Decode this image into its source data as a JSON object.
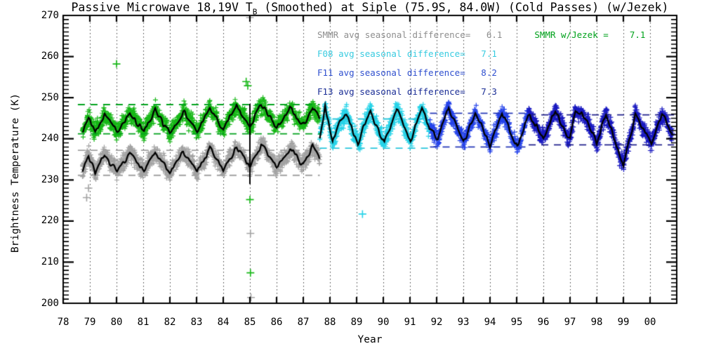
{
  "title_parts": {
    "prefix": "Passive Microwave 18,19V T",
    "subscript": "B",
    "suffix": " (Smoothed) at Siple (75.9S, 84.0W) (Cold Passes) (w/Jezek)"
  },
  "legend": {
    "rows": [
      {
        "label": "SMMR avg seasonal difference=   6.1",
        "color": "#8e8e8e"
      },
      {
        "label": "SMMR w/Jezek =    7.1",
        "color": "#00a21c"
      },
      {
        "label": "F08 avg seasonal difference=   7.1",
        "color": "#38cbe0"
      },
      {
        "label": "F11 avg seasonal difference=   8.2",
        "color": "#3050cf"
      },
      {
        "label": "F13 avg seasonal difference=   7.3",
        "color": "#1b2e96"
      }
    ]
  },
  "chart_data": {
    "type": "scatter",
    "title": "Passive Microwave 18,19V TB (Smoothed) at Siple (75.9S, 84.0W) (Cold Passes) (w/Jezek)",
    "xlabel": "Year",
    "ylabel": "Brightness Temperature (K)",
    "xlim": [
      78,
      101
    ],
    "ylim": [
      200,
      270
    ],
    "grid": "vertical-dotted",
    "xticks": [
      {
        "v": 78,
        "label": "78"
      },
      {
        "v": 79,
        "label": "79"
      },
      {
        "v": 80,
        "label": "80"
      },
      {
        "v": 81,
        "label": "81"
      },
      {
        "v": 82,
        "label": "82"
      },
      {
        "v": 83,
        "label": "83"
      },
      {
        "v": 84,
        "label": "84"
      },
      {
        "v": 85,
        "label": "85"
      },
      {
        "v": 86,
        "label": "86"
      },
      {
        "v": 87,
        "label": "87"
      },
      {
        "v": 88,
        "label": "88"
      },
      {
        "v": 89,
        "label": "89"
      },
      {
        "v": 90,
        "label": "90"
      },
      {
        "v": 91,
        "label": "91"
      },
      {
        "v": 92,
        "label": "92"
      },
      {
        "v": 93,
        "label": "93"
      },
      {
        "v": 94,
        "label": "94"
      },
      {
        "v": 95,
        "label": "95"
      },
      {
        "v": 96,
        "label": "96"
      },
      {
        "v": 97,
        "label": "97"
      },
      {
        "v": 98,
        "label": "98"
      },
      {
        "v": 99,
        "label": "99"
      },
      {
        "v": 100,
        "label": "00"
      }
    ],
    "yticks": [
      200,
      210,
      220,
      230,
      240,
      250,
      260,
      270
    ],
    "series": [
      {
        "name": "SMMR",
        "avg_seasonal_difference": 6.1,
        "marker_color": "#a2a2a2",
        "line_color": "#000000",
        "dash_color": "#a0a0a0",
        "x_start": 78.72,
        "x_end": 87.62,
        "dashed_lines": {
          "upper": 237.3,
          "lower": 231.2,
          "x1": 78.55,
          "x2": 87.62
        },
        "keypoints": [
          [
            78.72,
            232.5
          ],
          [
            78.95,
            236.2
          ],
          [
            79.2,
            232.0
          ],
          [
            79.55,
            236.0
          ],
          [
            80.02,
            232.2
          ],
          [
            80.5,
            236.4
          ],
          [
            81.03,
            232.0
          ],
          [
            81.45,
            236.9
          ],
          [
            82.0,
            231.7
          ],
          [
            82.5,
            236.6
          ],
          [
            83.02,
            232.0
          ],
          [
            83.5,
            237.6
          ],
          [
            84.0,
            232.4
          ],
          [
            84.5,
            238.1
          ],
          [
            85.0,
            233.2
          ],
          [
            85.42,
            238.4
          ],
          [
            86.0,
            233.3
          ],
          [
            86.5,
            237.4
          ],
          [
            87.0,
            233.6
          ],
          [
            87.35,
            238.3
          ],
          [
            87.62,
            234.8
          ]
        ]
      },
      {
        "name": "SMMR w/Jezek",
        "avg_seasonal_difference": 7.1,
        "marker_color": "#16b716",
        "line_color": "#000000",
        "dash_color": "#00a21c",
        "x_start": 78.72,
        "x_end": 87.62,
        "dashed_lines": {
          "upper": 248.4,
          "lower": 241.3,
          "x1": 78.55,
          "x2": 87.62
        },
        "keypoints": [
          [
            78.72,
            242.0
          ],
          [
            78.95,
            245.5
          ],
          [
            79.2,
            241.5
          ],
          [
            79.55,
            245.9
          ],
          [
            80.02,
            241.8
          ],
          [
            80.5,
            246.4
          ],
          [
            81.03,
            241.6
          ],
          [
            81.45,
            247.0
          ],
          [
            82.0,
            241.3
          ],
          [
            82.5,
            246.7
          ],
          [
            83.02,
            241.7
          ],
          [
            83.5,
            247.6
          ],
          [
            84.0,
            242.0
          ],
          [
            84.5,
            248.1
          ],
          [
            85.0,
            242.9
          ],
          [
            85.42,
            248.4
          ],
          [
            86.0,
            242.9
          ],
          [
            86.5,
            247.3
          ],
          [
            87.0,
            243.2
          ],
          [
            87.35,
            248.0
          ],
          [
            87.62,
            244.5
          ]
        ]
      },
      {
        "name": "F08",
        "avg_seasonal_difference": 7.1,
        "marker_color": "#26d3e8",
        "line_color": "#000000",
        "dash_color": "#2cc7dc",
        "x_start": 87.62,
        "x_end": 91.75,
        "dashed_lines": {
          "upper": 244.9,
          "lower": 237.8,
          "x1": 87.62,
          "x2": 91.75
        },
        "keypoints": [
          [
            87.62,
            239.5
          ],
          [
            87.82,
            248.0
          ],
          [
            88.1,
            239.2
          ],
          [
            88.35,
            244.0
          ],
          [
            88.62,
            246.3
          ],
          [
            89.05,
            238.6
          ],
          [
            89.3,
            243.5
          ],
          [
            89.52,
            246.6
          ],
          [
            90.04,
            239.0
          ],
          [
            90.5,
            247.3
          ],
          [
            91.02,
            239.3
          ],
          [
            91.45,
            247.5
          ],
          [
            91.75,
            242.5
          ]
        ]
      },
      {
        "name": "F11",
        "avg_seasonal_difference": 8.2,
        "marker_color": "#2543ea",
        "line_color": "#000000",
        "dash_color": "#2638b8",
        "x_start": 91.75,
        "x_end": 95.45,
        "dashed_lines": {
          "upper": 246.3,
          "lower": 238.1,
          "x1": 91.75,
          "x2": 95.45
        },
        "keypoints": [
          [
            91.75,
            242.5
          ],
          [
            92.05,
            239.8
          ],
          [
            92.45,
            247.4
          ],
          [
            93.0,
            238.8
          ],
          [
            93.45,
            246.7
          ],
          [
            94.0,
            238.4
          ],
          [
            94.45,
            246.4
          ],
          [
            95.02,
            237.9
          ],
          [
            95.45,
            246.4
          ]
        ]
      },
      {
        "name": "F13",
        "avg_seasonal_difference": 7.3,
        "marker_color": "#1818c0",
        "line_color": "#000000",
        "dash_color": "#20208c",
        "x_start": 95.45,
        "x_end": 100.85,
        "dashed_lines": {
          "upper": 245.9,
          "lower": 238.6,
          "x1": 95.45,
          "x2": 100.9
        },
        "keypoints": [
          [
            95.45,
            246.4
          ],
          [
            96.0,
            239.8
          ],
          [
            96.45,
            246.9
          ],
          [
            97.0,
            239.6
          ],
          [
            97.2,
            247.4
          ],
          [
            97.55,
            245.5
          ],
          [
            98.0,
            239.2
          ],
          [
            98.35,
            246.0
          ],
          [
            99.0,
            233.6
          ],
          [
            99.45,
            245.9
          ],
          [
            100.05,
            238.6
          ],
          [
            100.45,
            246.3
          ],
          [
            100.85,
            241.3
          ]
        ]
      }
    ],
    "outliers": [
      {
        "series": "SMMR",
        "x": 78.88,
        "y": 225.7
      },
      {
        "series": "SMMR",
        "x": 78.95,
        "y": 228.0
      },
      {
        "series": "SMMR w/Jezek",
        "x": 80.0,
        "y": 258.2
      },
      {
        "series": "SMMR w/Jezek",
        "x": 84.86,
        "y": 253.9
      },
      {
        "series": "SMMR w/Jezek",
        "x": 84.92,
        "y": 252.9
      },
      {
        "series": "SMMR",
        "x": 85.0,
        "y": 269.5
      },
      {
        "series": "SMMR w/Jezek",
        "x": 85.0,
        "y": 225.2
      },
      {
        "series": "SMMR",
        "x": 85.02,
        "y": 217.0
      },
      {
        "series": "SMMR w/Jezek",
        "x": 85.02,
        "y": 207.4
      },
      {
        "series": "SMMR",
        "x": 85.04,
        "y": 201.4
      },
      {
        "series": "F08",
        "x": 89.22,
        "y": 221.7
      }
    ],
    "spike": {
      "x": 85.0,
      "y_from": 229.0,
      "y_to": 248.5,
      "color": "#000000"
    }
  }
}
